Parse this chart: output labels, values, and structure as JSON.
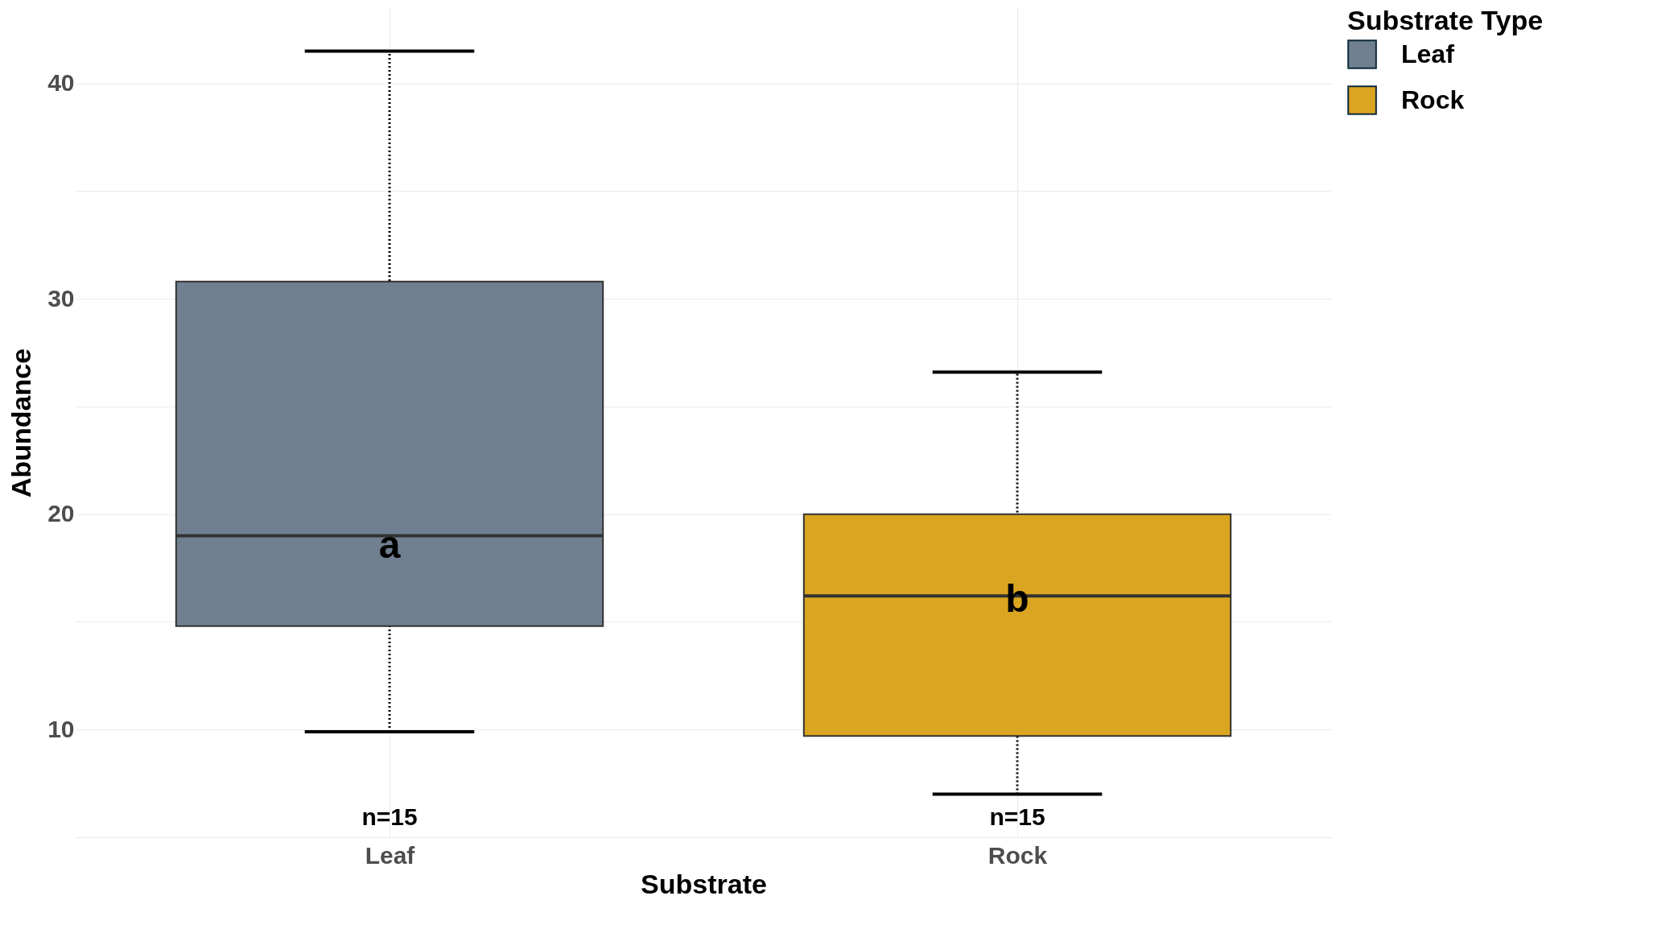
{
  "chart_data": {
    "type": "box",
    "xlabel": "Substrate",
    "ylabel": "Abundance",
    "legend_title": "Substrate Type",
    "categories": [
      "Leaf",
      "Rock"
    ],
    "series": [
      {
        "name": "Leaf",
        "color": "#708090",
        "boxes": [
          {
            "low": 9.9,
            "q1": 14.8,
            "median": 19,
            "q3": 30.8,
            "high": 41.5
          },
          null
        ]
      },
      {
        "name": "Rock",
        "color": "#daa520",
        "boxes": [
          null,
          {
            "low": 7,
            "q1": 9.7,
            "median": 16.2,
            "q3": 20,
            "high": 26.6
          }
        ]
      }
    ],
    "ylim": [
      5,
      43.5
    ],
    "yticks": [
      {
        "value": 5,
        "label": null
      },
      10,
      {
        "value": 15,
        "label": null
      },
      20,
      {
        "value": 25,
        "label": null
      },
      30,
      {
        "value": 35,
        "label": null
      },
      40
    ],
    "grid": true,
    "legend": "right",
    "line_style": "dotted",
    "annotations": [
      {
        "text": "a",
        "x": "Leaf",
        "y": 18.5
      },
      {
        "text": "b",
        "x": "Rock",
        "y": 16
      },
      "n=15",
      "n=15"
    ]
  }
}
